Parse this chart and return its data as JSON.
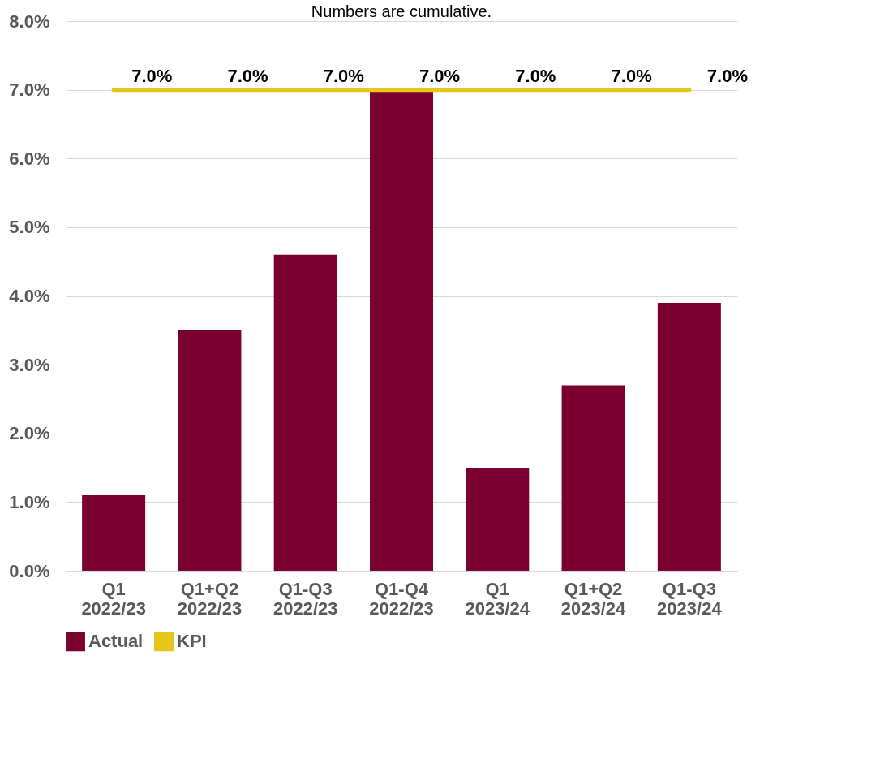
{
  "chart_data": {
    "type": "bar",
    "title": "Numbers are cumulative.",
    "categories": [
      "Q1 2022/23",
      "Q1+Q2 2022/23",
      "Q1-Q3 2022/23",
      "Q1-Q4 2022/23",
      "Q1 2023/24",
      "Q1+Q2 2023/24",
      "Q1-Q3 2023/24"
    ],
    "series": [
      {
        "name": "Actual",
        "color": "#7a0030",
        "values": [
          1.1,
          3.5,
          4.6,
          7.0,
          1.5,
          2.7,
          3.9
        ]
      },
      {
        "name": "KPI",
        "type": "line",
        "color": "#e6c619",
        "values": [
          7.0,
          7.0,
          7.0,
          7.0,
          7.0,
          7.0,
          7.0
        ],
        "value_labels": [
          "7.0%",
          "7.0%",
          "7.0%",
          "7.0%",
          "7.0%",
          "7.0%",
          "7.0%"
        ]
      }
    ],
    "ylim": [
      0,
      8
    ],
    "yticks": [
      {
        "value": 0,
        "label": "0.0%"
      },
      {
        "value": 1,
        "label": "1.0%"
      },
      {
        "value": 2,
        "label": "2.0%"
      },
      {
        "value": 3,
        "label": "3.0%"
      },
      {
        "value": 4,
        "label": "4.0%"
      },
      {
        "value": 5,
        "label": "5.0%"
      },
      {
        "value": 6,
        "label": "6.0%"
      },
      {
        "value": 7,
        "label": "7.0%"
      },
      {
        "value": 8,
        "label": "8.0%"
      }
    ],
    "grid": "y",
    "legend": "bottom",
    "marker": "none",
    "line_style": "solid"
  }
}
